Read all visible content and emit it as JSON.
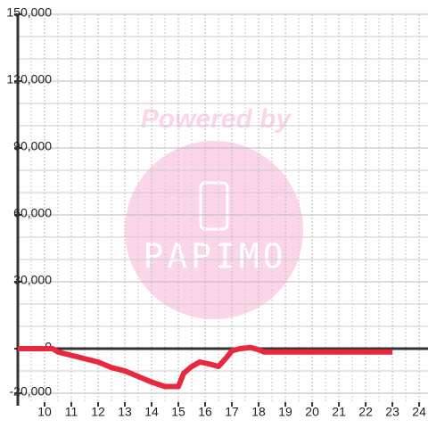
{
  "chart_data": {
    "type": "line",
    "watermark": {
      "top": "Powered by",
      "brand": "PAPIMO"
    },
    "x": [
      9,
      10,
      10.3,
      10.5,
      11,
      11.5,
      12,
      12.5,
      13,
      13.5,
      14,
      14.5,
      15,
      15.2,
      15.5,
      15.8,
      16.2,
      16.5,
      16.8,
      17,
      17.3,
      17.7,
      18,
      18.2,
      19,
      20,
      21,
      22,
      23
    ],
    "series": [
      {
        "color": "#e8283c",
        "values": [
          0,
          0,
          0,
          -1500,
          -3000,
          -4500,
          -6000,
          -8500,
          -10000,
          -12500,
          -15000,
          -17000,
          -17000,
          -11000,
          -8000,
          -6000,
          -7000,
          -8000,
          -4000,
          -1000,
          0,
          500,
          -500,
          -1500,
          -1500,
          -1500,
          -1500,
          -1500,
          -1500
        ]
      }
    ],
    "xlim": [
      9,
      24.33
    ],
    "ylim": [
      -24000,
      150000
    ],
    "xticks": [
      10,
      11,
      12,
      13,
      14,
      15,
      16,
      17,
      18,
      19,
      20,
      21,
      22,
      23,
      24
    ],
    "xminorticks": [
      9.5,
      10.5,
      11.5,
      12.5,
      13.5,
      14.5,
      15.5,
      16.5,
      17.5,
      18.5,
      19.5,
      20.5,
      21.5,
      22.5,
      23.5
    ],
    "yticks": [
      {
        "value": -20000,
        "label": "-20,000"
      },
      0,
      {
        "value": 30000,
        "label": "30,000"
      },
      {
        "value": 60000,
        "label": "60,000"
      },
      {
        "value": 90000,
        "label": "90,000"
      },
      {
        "value": 120000,
        "label": "120,000"
      },
      {
        "value": 150000,
        "label": "150,000"
      }
    ],
    "yminorticks": [
      -10000,
      10000,
      20000,
      40000,
      50000,
      70000,
      80000,
      100000,
      110000,
      130000,
      140000
    ],
    "grid": true
  }
}
